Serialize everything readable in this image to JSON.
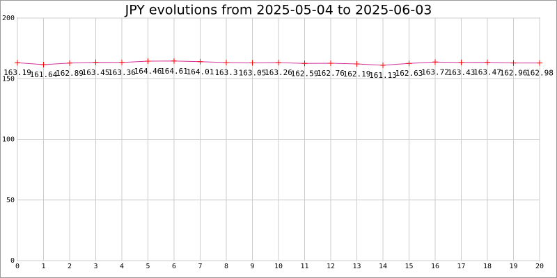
{
  "chart_data": {
    "type": "line",
    "title": "JPY evolutions from 2025-05-04 to 2025-06-03",
    "x": [
      0,
      1,
      2,
      3,
      4,
      5,
      6,
      7,
      8,
      9,
      10,
      11,
      12,
      13,
      14,
      15,
      16,
      17,
      18,
      19,
      20
    ],
    "values": [
      163.19,
      161.64,
      162.89,
      163.45,
      163.36,
      164.46,
      164.61,
      164.01,
      163.3,
      163.05,
      163.26,
      162.59,
      162.76,
      162.19,
      161.13,
      162.63,
      163.72,
      163.43,
      163.47,
      162.96,
      162.98
    ],
    "color": "#d0309a",
    "marker_color": "#ff0000",
    "xlim": [
      0,
      20
    ],
    "xticks": [
      0,
      1,
      2,
      3,
      4,
      5,
      6,
      7,
      8,
      9,
      10,
      11,
      12,
      13,
      14,
      15,
      16,
      17,
      18,
      19,
      20
    ],
    "ylim": [
      0,
      200
    ],
    "yticks": [
      0,
      50,
      100,
      150,
      200
    ],
    "grid": true
  }
}
